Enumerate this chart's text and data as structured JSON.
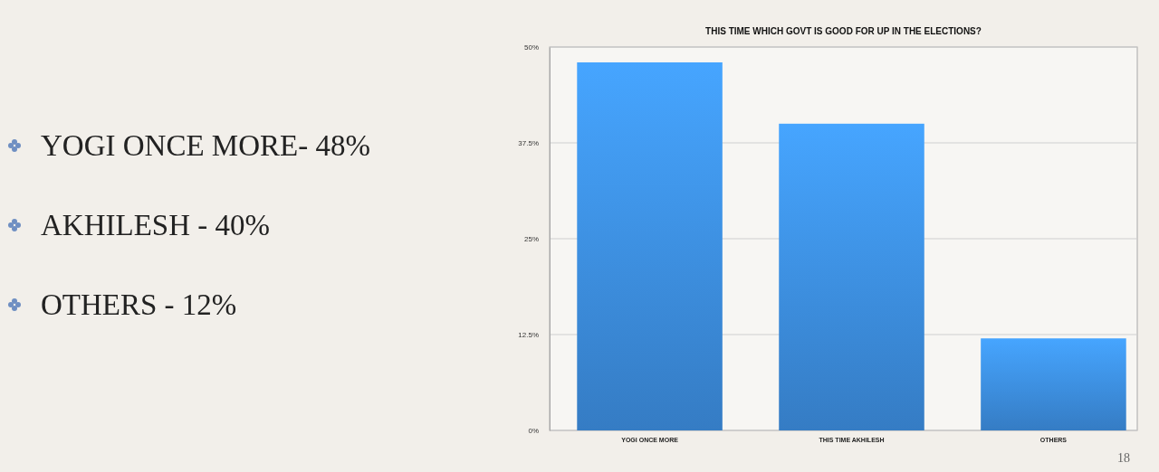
{
  "chart_data": {
    "type": "bar",
    "title": "THIS TIME WHICH GOVT IS GOOD FOR UP IN THE ELECTIONS?",
    "categories": [
      "YOGI ONCE MORE",
      "THIS TIME AKHILESH",
      "OTHERS"
    ],
    "values": [
      48,
      40,
      12
    ],
    "color": "#3f94ea",
    "ylim": [
      0,
      50
    ],
    "yticks": [
      {
        "value": 0,
        "label": "0%"
      },
      {
        "value": 12.5,
        "label": "12.5%"
      },
      {
        "value": 25,
        "label": "25%"
      },
      {
        "value": 37.5,
        "label": "37.5%"
      },
      {
        "value": 50,
        "label": "50%"
      }
    ],
    "grid": "y",
    "annotations": [
      "YOGI ONCE MORE- 48%",
      "AKHILESH - 40%",
      "OTHERS - 12%",
      "18"
    ]
  }
}
